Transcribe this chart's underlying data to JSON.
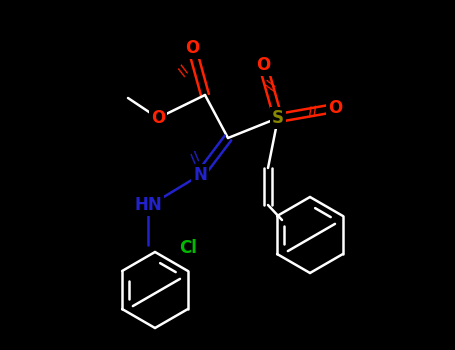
{
  "background_color": "#000000",
  "fig_width": 4.55,
  "fig_height": 3.5,
  "dpi": 100,
  "bond_color": "#ffffff",
  "bond_width": 1.8,
  "atom_colors": {
    "O": "#ff2200",
    "N": "#2222cc",
    "S": "#888800",
    "Cl": "#00bb00",
    "C": "#ffffff",
    "H": "#ffffff"
  },
  "font_size": 10,
  "xlim": [
    0,
    455
  ],
  "ylim": [
    0,
    350
  ]
}
